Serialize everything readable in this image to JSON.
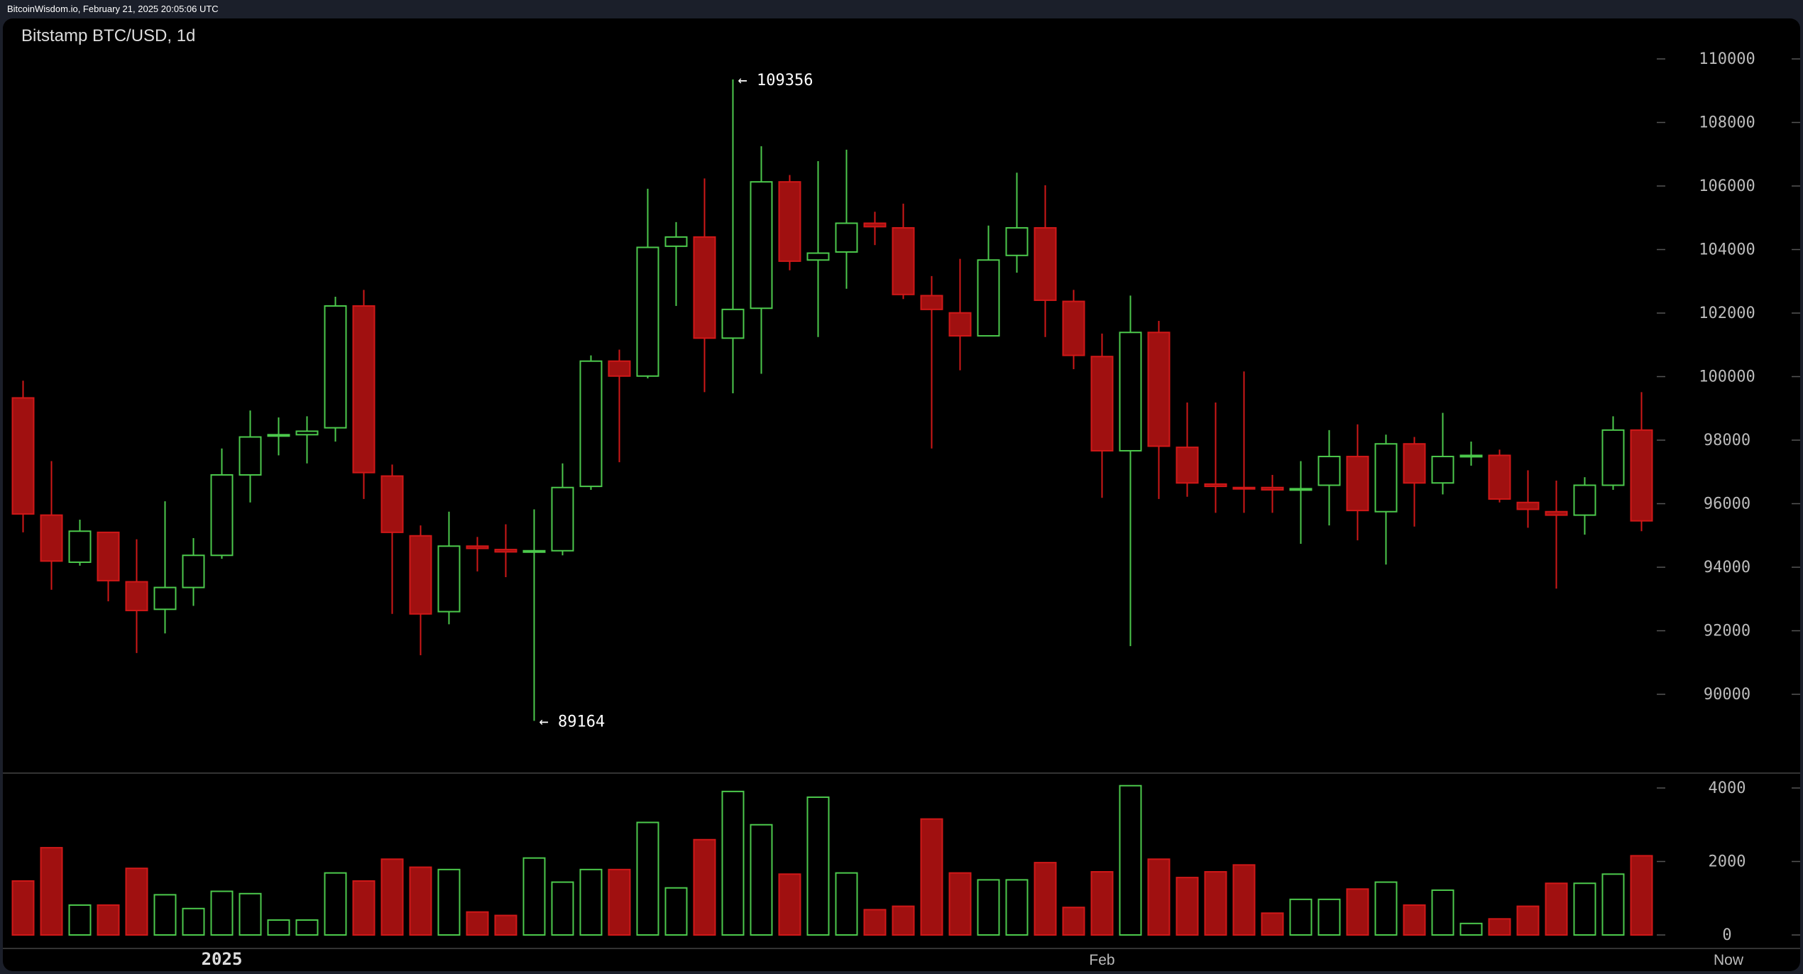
{
  "header": {
    "text": "BitcoinWisdom.io, February 21, 2025 20:05:06 UTC"
  },
  "colors": {
    "up": "#4cc94c",
    "down": "#a01010",
    "down_edge": "#d01818",
    "axis_text": "#bbbbbb"
  },
  "chart_data": {
    "type": "candlestick",
    "title": "Bitstamp BTC/USD, 1d",
    "price_axis": {
      "ticks": [
        "110000",
        "108000",
        "106000",
        "104000",
        "102000",
        "100000",
        "98000",
        "96000",
        "94000",
        "92000",
        "90000"
      ],
      "range": [
        90000,
        110000
      ]
    },
    "volume_axis": {
      "ticks": [
        "4000",
        "2000",
        "0"
      ],
      "range": [
        0,
        4000
      ]
    },
    "x_labels": [
      {
        "label": "2025",
        "index": 7
      },
      {
        "label": "Feb",
        "index": 38
      },
      {
        "label": "Now",
        "index": 60
      }
    ],
    "annotations": [
      {
        "label": "← 109356",
        "index": 25,
        "price": 109356
      },
      {
        "label": "← 89164",
        "index": 18,
        "price": 89164
      }
    ],
    "candles": [
      [
        99330,
        99872,
        95098,
        95677,
        1469
      ],
      [
        95640,
        97340,
        93290,
        94194,
        2375
      ],
      [
        94158,
        95496,
        94049,
        95134,
        813
      ],
      [
        95098,
        95098,
        92927,
        93578,
        813
      ],
      [
        93542,
        94881,
        91300,
        92638,
        1813
      ],
      [
        92675,
        96075,
        91915,
        93362,
        1094
      ],
      [
        93362,
        94917,
        92783,
        94374,
        719
      ],
      [
        94374,
        97738,
        94266,
        96906,
        1188
      ],
      [
        96906,
        98932,
        96039,
        98100,
        1125
      ],
      [
        98136,
        98715,
        97521,
        98172,
        406
      ],
      [
        98172,
        98751,
        97268,
        98281,
        406
      ],
      [
        98389,
        102513,
        97955,
        102224,
        1688
      ],
      [
        102224,
        102730,
        96147,
        96979,
        1469
      ],
      [
        96870,
        97232,
        92530,
        95098,
        2063
      ],
      [
        94989,
        95315,
        91228,
        92530,
        1844
      ],
      [
        92602,
        95749,
        92204,
        94664,
        1781
      ],
      [
        94664,
        94953,
        93868,
        94592,
        625
      ],
      [
        94556,
        95351,
        93687,
        94483,
        531
      ],
      [
        94483,
        95822,
        89164,
        94519,
        2094
      ],
      [
        94519,
        97268,
        94374,
        96509,
        1438
      ],
      [
        96545,
        100668,
        96436,
        100487,
        1781
      ],
      [
        100487,
        100849,
        97304,
        100017,
        1781
      ],
      [
        100017,
        105913,
        99945,
        104068,
        3063
      ],
      [
        104104,
        104864,
        102224,
        104394,
        1281
      ],
      [
        104394,
        106238,
        99510,
        101211,
        2594
      ],
      [
        101211,
        109356,
        99474,
        102115,
        3906
      ],
      [
        102151,
        107251,
        100089,
        106130,
        3000
      ],
      [
        106130,
        106347,
        103345,
        103634,
        1656
      ],
      [
        103670,
        106781,
        101247,
        103887,
        3750
      ],
      [
        103923,
        107142,
        102766,
        104828,
        1688
      ],
      [
        104828,
        105189,
        104140,
        104719,
        688
      ],
      [
        104683,
        105443,
        102441,
        102585,
        781
      ],
      [
        102549,
        103164,
        97738,
        102115,
        3156
      ],
      [
        102007,
        103706,
        100198,
        101283,
        1688
      ],
      [
        101283,
        104755,
        101283,
        103670,
        1500
      ],
      [
        103815,
        106419,
        103272,
        104683,
        1500
      ],
      [
        104683,
        106021,
        101247,
        102404,
        1969
      ],
      [
        102368,
        102730,
        100234,
        100668,
        750
      ],
      [
        100632,
        101355,
        96183,
        97666,
        1719
      ],
      [
        97666,
        102549,
        91517,
        101391,
        4063
      ],
      [
        101391,
        101753,
        96147,
        97810,
        2063
      ],
      [
        97774,
        99185,
        96219,
        96653,
        1563
      ],
      [
        96617,
        99185,
        95713,
        96545,
        1719
      ],
      [
        96509,
        100162,
        95713,
        96472,
        1906
      ],
      [
        96509,
        96906,
        95713,
        96436,
        594
      ],
      [
        96436,
        97340,
        94736,
        96472,
        969
      ],
      [
        96581,
        98317,
        95315,
        97485,
        969
      ],
      [
        97485,
        98498,
        94845,
        95785,
        1250
      ],
      [
        95749,
        98172,
        94085,
        97883,
        1438
      ],
      [
        97883,
        98100,
        95279,
        96653,
        813
      ],
      [
        96653,
        98859,
        96292,
        97485,
        1219
      ],
      [
        97485,
        97955,
        97196,
        97521,
        313
      ],
      [
        97521,
        97702,
        96039,
        96147,
        438
      ],
      [
        96039,
        97051,
        95242,
        95822,
        781
      ],
      [
        95749,
        96725,
        93326,
        95640,
        1406
      ],
      [
        95640,
        96834,
        95025,
        96581,
        1406
      ],
      [
        96581,
        98751,
        96436,
        98317,
        1656
      ],
      [
        98317,
        99510,
        95134,
        95460,
        2156
      ]
    ],
    "candle_fields": [
      "open",
      "high",
      "low",
      "close",
      "volume"
    ]
  }
}
